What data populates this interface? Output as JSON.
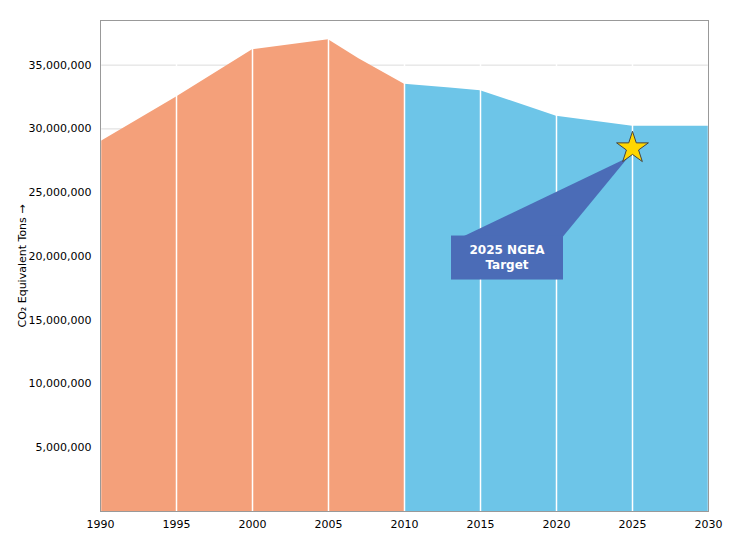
{
  "chart_data": {
    "type": "area",
    "ylabel": "CO₂ Equivalent Tons",
    "series": [
      {
        "color": "#F4A07A",
        "x": [
          1990,
          1995,
          2000,
          2005,
          2007,
          2010
        ],
        "values": [
          29000000,
          32500000,
          36200000,
          37000000,
          35500000,
          33500000
        ]
      },
      {
        "color": "#6DC5E8",
        "x": [
          2010,
          2013,
          2015,
          2020,
          2025,
          2030
        ],
        "values": [
          33500000,
          33200000,
          33000000,
          31000000,
          30200000,
          30200000
        ]
      }
    ],
    "xlim": [
      1990,
      2030
    ],
    "xticks": [
      1990,
      1995,
      2000,
      2005,
      2010,
      2015,
      2020,
      2025,
      2030
    ],
    "ylim": [
      0,
      38500000
    ],
    "yticks": [
      {
        "value": 5000000,
        "label": "5,000,000"
      },
      {
        "value": 10000000,
        "label": "10,000,000"
      },
      {
        "value": 15000000,
        "label": "15,000,000"
      },
      {
        "value": 20000000,
        "label": "20,000,000"
      },
      {
        "value": 25000000,
        "label": "25,000,000"
      },
      {
        "value": 30000000,
        "label": "30,000,000"
      },
      {
        "value": 35000000,
        "label": "35,000,000"
      }
    ],
    "grid": true,
    "annotations": [
      {
        "text": "2025 NGEA\nTarget",
        "x": 2025,
        "y": 28500000,
        "marker": "star",
        "color": "#FFD700",
        "box_color": "#4B6CB7",
        "text_color": "#ffffff"
      }
    ]
  }
}
